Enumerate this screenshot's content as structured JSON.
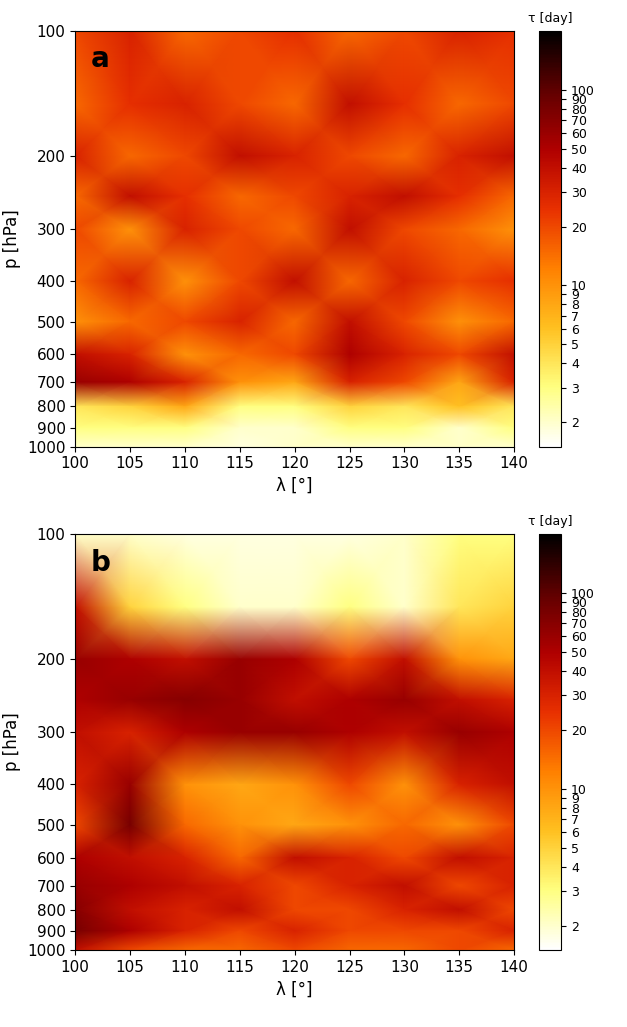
{
  "chart_data": [
    {
      "type": "heatmap",
      "panel_label": "a",
      "xlabel": "λ [°]",
      "ylabel": "p [hPa]",
      "x": [
        100,
        105,
        110,
        115,
        120,
        125,
        130,
        135,
        140
      ],
      "y": [
        100,
        150,
        200,
        250,
        300,
        400,
        500,
        600,
        700,
        800,
        900,
        1000
      ],
      "cells": [
        [
          20,
          30,
          15,
          20,
          25,
          15,
          20,
          30,
          25
        ],
        [
          15,
          25,
          30,
          20,
          15,
          40,
          25,
          15,
          20
        ],
        [
          30,
          15,
          20,
          40,
          30,
          20,
          15,
          30,
          40
        ],
        [
          15,
          40,
          25,
          15,
          20,
          30,
          40,
          25,
          15
        ],
        [
          20,
          10,
          30,
          20,
          15,
          40,
          20,
          15,
          10
        ],
        [
          15,
          30,
          10,
          20,
          40,
          15,
          30,
          20,
          25
        ],
        [
          10,
          15,
          20,
          30,
          15,
          40,
          20,
          10,
          15
        ],
        [
          40,
          30,
          10,
          15,
          20,
          50,
          30,
          20,
          40
        ],
        [
          60,
          50,
          30,
          10,
          8,
          30,
          20,
          8,
          30
        ],
        [
          4,
          5,
          8,
          3,
          3,
          5,
          4,
          6,
          4
        ],
        [
          3,
          3,
          3,
          2,
          2,
          3,
          3,
          2,
          3
        ],
        [
          2,
          2,
          2,
          1.8,
          2,
          2,
          2,
          2,
          2
        ]
      ],
      "xlim": [
        100,
        140
      ],
      "xticks": [
        100,
        105,
        110,
        115,
        120,
        125,
        130,
        135,
        140
      ],
      "ylim": [
        1000,
        100
      ],
      "yticks": [
        100,
        200,
        300,
        400,
        500,
        600,
        700,
        800,
        900,
        1000
      ],
      "log": "y",
      "colorbar": {
        "label": "τ [day]",
        "range": [
          1.5,
          200
        ],
        "log": true,
        "ticks": [
          2,
          3,
          4,
          5,
          6,
          7,
          8,
          9,
          10,
          20,
          30,
          40,
          50,
          60,
          70,
          80,
          90,
          100
        ]
      }
    },
    {
      "type": "heatmap",
      "panel_label": "b",
      "xlabel": "λ [°]",
      "ylabel": "p [hPa]",
      "x": [
        100,
        105,
        110,
        115,
        120,
        125,
        130,
        135,
        140
      ],
      "y": [
        100,
        150,
        200,
        250,
        300,
        400,
        500,
        600,
        700,
        800,
        900,
        1000
      ],
      "cells": [
        [
          2,
          2,
          1.8,
          1.8,
          1.8,
          1.8,
          2,
          3,
          3
        ],
        [
          40,
          5,
          3,
          2,
          2,
          3,
          2,
          4,
          5
        ],
        [
          60,
          50,
          40,
          60,
          50,
          20,
          40,
          10,
          8
        ],
        [
          50,
          60,
          70,
          60,
          40,
          50,
          60,
          40,
          30
        ],
        [
          40,
          30,
          50,
          60,
          60,
          50,
          40,
          60,
          50
        ],
        [
          30,
          60,
          10,
          8,
          10,
          20,
          10,
          30,
          40
        ],
        [
          20,
          80,
          15,
          10,
          8,
          10,
          15,
          10,
          20
        ],
        [
          50,
          40,
          30,
          15,
          40,
          30,
          20,
          40,
          30
        ],
        [
          60,
          50,
          40,
          30,
          20,
          30,
          40,
          20,
          30
        ],
        [
          70,
          40,
          30,
          40,
          20,
          20,
          30,
          40,
          20
        ],
        [
          80,
          50,
          30,
          20,
          30,
          20,
          20,
          20,
          30
        ],
        [
          40,
          20,
          15,
          15,
          20,
          15,
          15,
          20,
          15
        ]
      ],
      "xlim": [
        100,
        140
      ],
      "xticks": [
        100,
        105,
        110,
        115,
        120,
        125,
        130,
        135,
        140
      ],
      "ylim": [
        1000,
        100
      ],
      "yticks": [
        100,
        200,
        300,
        400,
        500,
        600,
        700,
        800,
        900,
        1000
      ],
      "log": "y",
      "colorbar": {
        "label": "τ [day]",
        "range": [
          1.5,
          200
        ],
        "log": true,
        "ticks": [
          2,
          3,
          4,
          5,
          6,
          7,
          8,
          9,
          10,
          20,
          30,
          40,
          50,
          60,
          70,
          80,
          90,
          100
        ]
      }
    }
  ]
}
